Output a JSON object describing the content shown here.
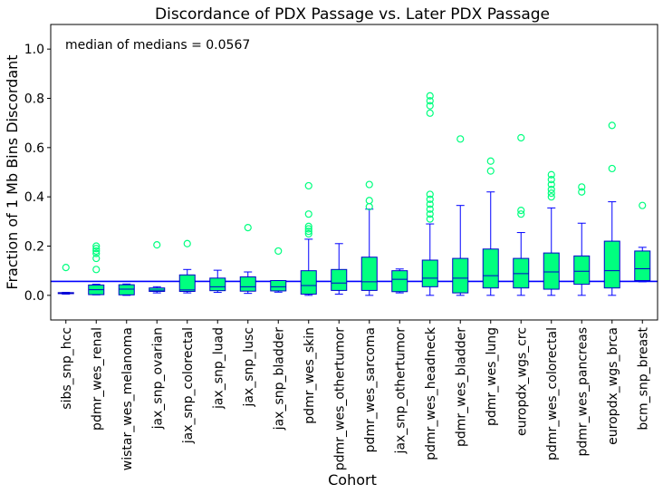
{
  "chart_data": {
    "type": "box",
    "title": "Discordance of PDX Passage vs. Later PDX Passage",
    "xlabel": "Cohort",
    "ylabel": "Fraction of 1 Mb Bins Discordant",
    "ylim": [
      -0.1,
      1.1
    ],
    "yticks": [
      "0.0",
      "0.2",
      "0.4",
      "0.6",
      "0.8",
      "1.0"
    ],
    "ytick_values": [
      0.0,
      0.2,
      0.4,
      0.6,
      0.8,
      1.0
    ],
    "annotation": "median of medians = 0.0567",
    "reference_line": 0.0567,
    "grid": false,
    "colors": {
      "box_fill": "#00ff7f",
      "box_edge": "#0000cc",
      "whisker": "#0000ff",
      "median": "#0000cc",
      "flier": "#00ff7f",
      "ref_line": "#0000ff"
    },
    "categories": [
      "sibs_snp_hcc",
      "pdmr_wes_renal",
      "wistar_wes_melanoma",
      "jax_snp_ovarian",
      "jax_snp_colorectal",
      "jax_snp_luad",
      "jax_snp_lusc",
      "jax_snp_bladder",
      "pdmr_wes_skin",
      "pdmr_wes_othertumor",
      "pdmr_wes_sarcoma",
      "jax_snp_othertumor",
      "pdmr_wes_headneck",
      "pdmr_wes_bladder",
      "pdmr_wes_lung",
      "europdx_wgs_crc",
      "pdmr_wes_colorectal",
      "pdmr_wes_pancreas",
      "europdx_wgs_brca",
      "bcm_snp_breast"
    ],
    "boxes": [
      {
        "low": 0.005,
        "q1": 0.007,
        "median": 0.009,
        "q3": 0.011,
        "high": 0.012,
        "fliers": [
          0.113
        ]
      },
      {
        "low": 0.002,
        "q1": 0.003,
        "median": 0.023,
        "q3": 0.042,
        "high": 0.045,
        "fliers": [
          0.105,
          0.15,
          0.17,
          0.18,
          0.19,
          0.2
        ]
      },
      {
        "low": 0.0,
        "q1": 0.002,
        "median": 0.025,
        "q3": 0.043,
        "high": 0.046,
        "fliers": []
      },
      {
        "low": 0.01,
        "q1": 0.016,
        "median": 0.021,
        "q3": 0.03,
        "high": 0.035,
        "fliers": [
          0.205
        ]
      },
      {
        "low": 0.01,
        "q1": 0.016,
        "median": 0.022,
        "q3": 0.083,
        "high": 0.105,
        "fliers": [
          0.21
        ]
      },
      {
        "low": 0.012,
        "q1": 0.019,
        "median": 0.035,
        "q3": 0.07,
        "high": 0.102,
        "fliers": []
      },
      {
        "low": 0.008,
        "q1": 0.017,
        "median": 0.035,
        "q3": 0.075,
        "high": 0.095,
        "fliers": [
          0.275
        ]
      },
      {
        "low": 0.013,
        "q1": 0.018,
        "median": 0.035,
        "q3": 0.06,
        "high": 0.06,
        "fliers": [
          0.18
        ]
      },
      {
        "low": 0.0,
        "q1": 0.005,
        "median": 0.04,
        "q3": 0.1,
        "high": 0.228,
        "fliers": [
          0.25,
          0.26,
          0.27,
          0.28,
          0.33,
          0.445
        ]
      },
      {
        "low": 0.005,
        "q1": 0.02,
        "median": 0.05,
        "q3": 0.105,
        "high": 0.21,
        "fliers": []
      },
      {
        "low": 0.0,
        "q1": 0.02,
        "median": 0.055,
        "q3": 0.155,
        "high": 0.35,
        "fliers": [
          0.36,
          0.385,
          0.45
        ]
      },
      {
        "low": 0.01,
        "q1": 0.015,
        "median": 0.065,
        "q3": 0.1,
        "high": 0.107,
        "fliers": []
      },
      {
        "low": 0.0,
        "q1": 0.035,
        "median": 0.07,
        "q3": 0.143,
        "high": 0.29,
        "fliers": [
          0.31,
          0.33,
          0.35,
          0.37,
          0.39,
          0.41,
          0.74,
          0.77,
          0.79,
          0.81
        ]
      },
      {
        "low": 0.0,
        "q1": 0.01,
        "median": 0.07,
        "q3": 0.15,
        "high": 0.365,
        "fliers": [
          0.635
        ]
      },
      {
        "low": 0.0,
        "q1": 0.03,
        "median": 0.08,
        "q3": 0.188,
        "high": 0.42,
        "fliers": [
          0.505,
          0.545
        ]
      },
      {
        "low": 0.0,
        "q1": 0.03,
        "median": 0.088,
        "q3": 0.15,
        "high": 0.255,
        "fliers": [
          0.33,
          0.345,
          0.64
        ]
      },
      {
        "low": 0.0,
        "q1": 0.025,
        "median": 0.095,
        "q3": 0.172,
        "high": 0.355,
        "fliers": [
          0.4,
          0.415,
          0.43,
          0.45,
          0.47,
          0.49
        ]
      },
      {
        "low": 0.0,
        "q1": 0.045,
        "median": 0.098,
        "q3": 0.16,
        "high": 0.293,
        "fliers": [
          0.42,
          0.44
        ]
      },
      {
        "low": 0.0,
        "q1": 0.03,
        "median": 0.1,
        "q3": 0.22,
        "high": 0.38,
        "fliers": [
          0.515,
          0.69
        ]
      },
      {
        "low": 0.055,
        "q1": 0.06,
        "median": 0.108,
        "q3": 0.18,
        "high": 0.195,
        "fliers": [
          0.365
        ]
      }
    ]
  }
}
